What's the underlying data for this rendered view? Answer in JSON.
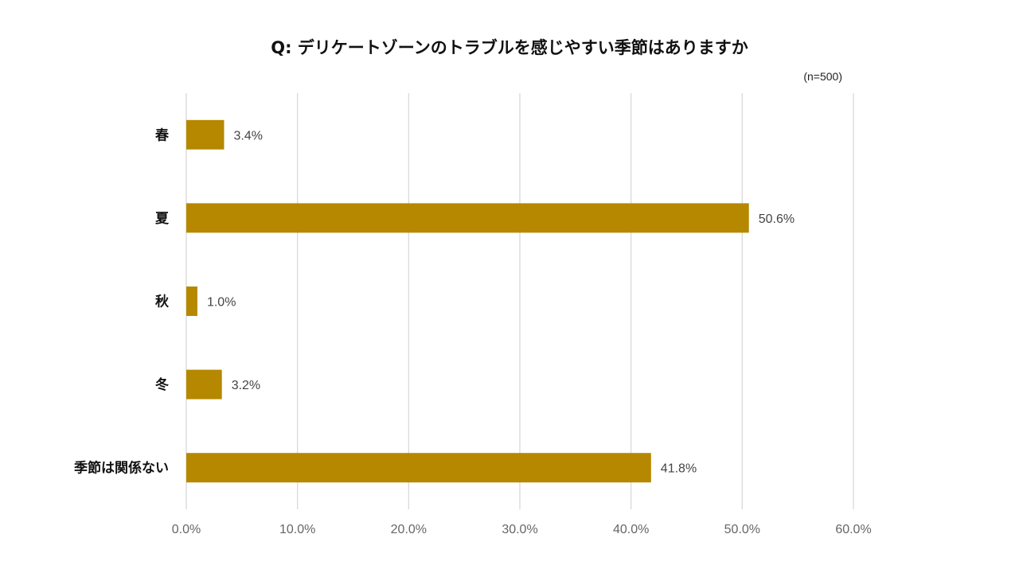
{
  "chart_data": {
    "type": "bar",
    "orientation": "horizontal",
    "title": "Q: デリケートゾーンのトラブルを感じやすい季節はありますか",
    "sample_note": "(n=500)",
    "categories": [
      "春",
      "夏",
      "秋",
      "冬",
      "季節は関係ない"
    ],
    "values": [
      3.4,
      50.6,
      1.0,
      3.2,
      41.8
    ],
    "value_labels": [
      "3.4%",
      "50.6%",
      "1.0%",
      "3.2%",
      "41.8%"
    ],
    "xlim": [
      0,
      60
    ],
    "xticks": [
      0,
      10,
      20,
      30,
      40,
      50,
      60
    ],
    "xtick_labels": [
      "0.0%",
      "10.0%",
      "20.0%",
      "30.0%",
      "40.0%",
      "50.0%",
      "60.0%"
    ],
    "xlabel": "",
    "ylabel": "",
    "grid": "vertical",
    "legend": "none",
    "bar_color": "#B58800",
    "grid_color": "#D9D9D9"
  }
}
